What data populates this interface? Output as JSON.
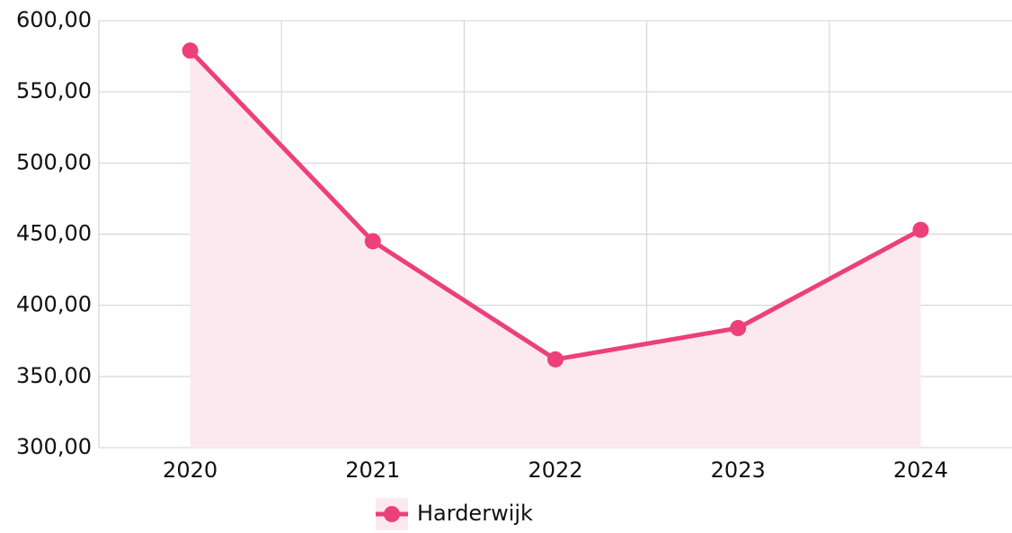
{
  "chart_data": {
    "type": "line",
    "categories": [
      "2020",
      "2021",
      "2022",
      "2023",
      "2024"
    ],
    "series": [
      {
        "name": "Harderwijk",
        "color": "#ec407a",
        "fill": "#fce8ef",
        "values": [
          579,
          445,
          362,
          384,
          453
        ]
      }
    ],
    "ylim": [
      300,
      600
    ],
    "yticks": [
      {
        "value": 300,
        "label": "300,00"
      },
      {
        "value": 350,
        "label": "350,00"
      },
      {
        "value": 400,
        "label": "400,00"
      },
      {
        "value": 450,
        "label": "450,00"
      },
      {
        "value": 500,
        "label": "500,00"
      },
      {
        "value": 550,
        "label": "550,00"
      },
      {
        "value": 600,
        "label": "600,00"
      }
    ],
    "grid": true,
    "legend": "bottom"
  }
}
